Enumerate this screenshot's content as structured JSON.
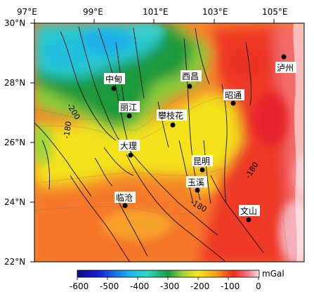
{
  "map": {
    "lon_labels": [
      "97°E",
      "99°E",
      "101°E",
      "103°E",
      "105°E"
    ],
    "lat_labels": [
      "30°N",
      "28°N",
      "26°N",
      "24°N",
      "22°N"
    ],
    "cities": [
      {
        "name": "中甸"
      },
      {
        "name": "丽江"
      },
      {
        "name": "大理"
      },
      {
        "name": "临沧"
      },
      {
        "name": "攀枝花"
      },
      {
        "name": "西昌"
      },
      {
        "name": "昭通"
      },
      {
        "name": "昆明"
      },
      {
        "name": "玉溪"
      },
      {
        "name": "文山"
      },
      {
        "name": "泸州"
      }
    ],
    "contour_labels": [
      "-200",
      "-180",
      "-180"
    ],
    "colors": {
      "blue": "#1a14c8",
      "cyan": "#1ecbe0",
      "green": "#1a9a3a",
      "yellow": "#f3e820",
      "orange": "#f6901e",
      "red": "#ee2a22",
      "pink": "#f7b7c1"
    }
  },
  "colorbar": {
    "tick_labels": [
      "-600",
      "-500",
      "-400",
      "-300",
      "-200",
      "-100",
      "0"
    ],
    "unit": "mGal"
  }
}
